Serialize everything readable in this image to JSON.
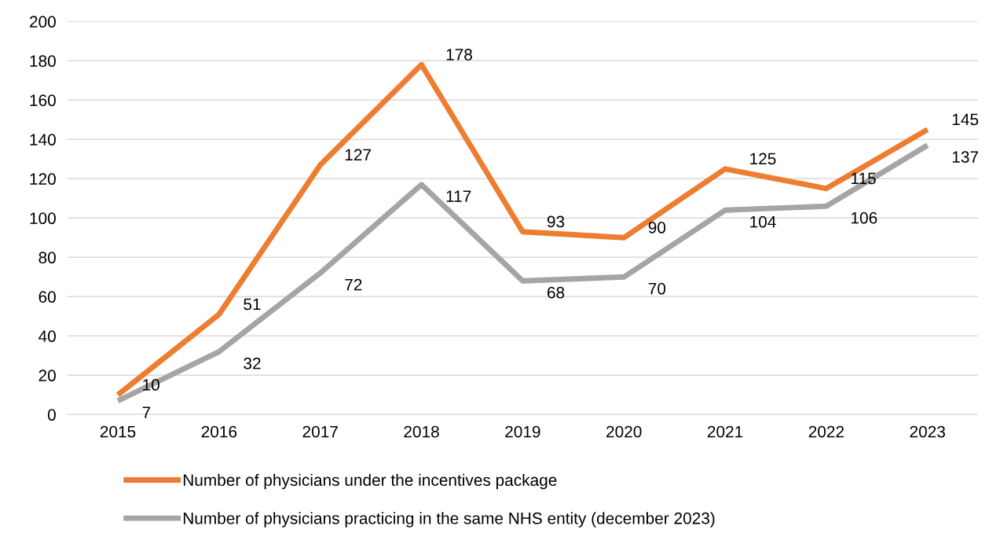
{
  "chart_data": {
    "type": "line",
    "categories": [
      "2015",
      "2016",
      "2017",
      "2018",
      "2019",
      "2020",
      "2021",
      "2022",
      "2023"
    ],
    "series": [
      {
        "name": "Number of physicians under the incentives package",
        "color": "#ed7d31",
        "values": [
          10,
          51,
          127,
          178,
          93,
          90,
          125,
          115,
          145
        ]
      },
      {
        "name": "Number of physicians practicing in the same NHS entity (december 2023)",
        "color": "#a5a5a5",
        "values": [
          7,
          32,
          72,
          117,
          68,
          70,
          104,
          106,
          137
        ]
      }
    ],
    "ylim": [
      0,
      200
    ],
    "yticks": [
      0,
      20,
      40,
      60,
      80,
      100,
      120,
      140,
      160,
      180,
      200
    ],
    "grid": "y",
    "legend": "bottom",
    "data_labels": true,
    "marker": "none",
    "line_style": "solid"
  }
}
